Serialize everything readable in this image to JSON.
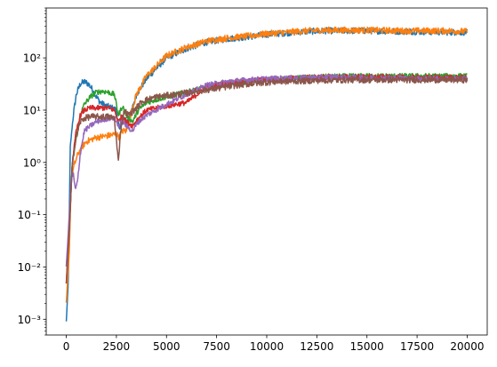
{
  "chart_data": {
    "type": "line",
    "title": "",
    "xlabel": "",
    "ylabel": "",
    "xlim": [
      -1000,
      21000
    ],
    "ylim": [
      0.0005,
      900
    ],
    "yscale": "log",
    "grid": false,
    "legend": "none",
    "x_ticks": [
      0,
      2500,
      5000,
      7500,
      10000,
      12500,
      15000,
      17500,
      20000
    ],
    "x_tick_labels": [
      "0",
      "2500",
      "5000",
      "7500",
      "10000",
      "12500",
      "15000",
      "17500",
      "20000"
    ],
    "y_ticks": [
      0.001,
      0.01,
      0.1,
      1,
      10,
      100
    ],
    "y_tick_labels": [
      "10⁻³",
      "10⁻²",
      "10⁻¹",
      "10⁰",
      "10¹",
      "10²"
    ],
    "series": [
      {
        "color": "#1f77b4",
        "noise": 0.06,
        "points": [
          [
            0,
            0.0009
          ],
          [
            100,
            0.005
          ],
          [
            200,
            2
          ],
          [
            350,
            8
          ],
          [
            500,
            20
          ],
          [
            700,
            32
          ],
          [
            900,
            35
          ],
          [
            1100,
            32
          ],
          [
            1300,
            25
          ],
          [
            1500,
            18
          ],
          [
            1700,
            14
          ],
          [
            2000,
            12
          ],
          [
            2300,
            11
          ],
          [
            2500,
            10
          ],
          [
            2650,
            4
          ],
          [
            2800,
            7
          ],
          [
            3000,
            6
          ],
          [
            3200,
            8
          ],
          [
            3500,
            20
          ],
          [
            4000,
            40
          ],
          [
            5000,
            100
          ],
          [
            6000,
            150
          ],
          [
            7000,
            200
          ],
          [
            8000,
            230
          ],
          [
            9000,
            250
          ],
          [
            10000,
            280
          ],
          [
            11000,
            300
          ],
          [
            12000,
            320
          ],
          [
            13000,
            330
          ],
          [
            15000,
            330
          ],
          [
            17000,
            320
          ],
          [
            19000,
            310
          ],
          [
            20000,
            310
          ]
        ]
      },
      {
        "color": "#ff7f0e",
        "noise": 0.06,
        "points": [
          [
            0,
            0.002
          ],
          [
            150,
            0.02
          ],
          [
            250,
            0.5
          ],
          [
            400,
            0.9
          ],
          [
            600,
            1.5
          ],
          [
            800,
            2
          ],
          [
            1000,
            2.5
          ],
          [
            1500,
            3
          ],
          [
            2000,
            3.2
          ],
          [
            2500,
            3.5
          ],
          [
            2650,
            3
          ],
          [
            2800,
            4
          ],
          [
            3000,
            4
          ],
          [
            3200,
            8
          ],
          [
            3500,
            20
          ],
          [
            4000,
            45
          ],
          [
            5000,
            110
          ],
          [
            6000,
            160
          ],
          [
            7000,
            210
          ],
          [
            8000,
            240
          ],
          [
            9000,
            260
          ],
          [
            10000,
            290
          ],
          [
            11000,
            310
          ],
          [
            12000,
            330
          ],
          [
            13000,
            340
          ],
          [
            15000,
            340
          ],
          [
            17000,
            330
          ],
          [
            19000,
            330
          ],
          [
            20000,
            320
          ]
        ]
      },
      {
        "color": "#2ca02c",
        "noise": 0.05,
        "points": [
          [
            0,
            0.01
          ],
          [
            150,
            0.05
          ],
          [
            300,
            1
          ],
          [
            500,
            3
          ],
          [
            700,
            8
          ],
          [
            900,
            13
          ],
          [
            1200,
            18
          ],
          [
            1500,
            22
          ],
          [
            1800,
            23
          ],
          [
            2100,
            22
          ],
          [
            2400,
            20
          ],
          [
            2600,
            8
          ],
          [
            2800,
            12
          ],
          [
            3000,
            8
          ],
          [
            3300,
            6
          ],
          [
            3600,
            10
          ],
          [
            4000,
            14
          ],
          [
            5000,
            18
          ],
          [
            6000,
            22
          ],
          [
            7000,
            28
          ],
          [
            8000,
            32
          ],
          [
            9000,
            35
          ],
          [
            10000,
            38
          ],
          [
            11000,
            40
          ],
          [
            12000,
            42
          ],
          [
            13000,
            44
          ],
          [
            15000,
            45
          ],
          [
            17000,
            45
          ],
          [
            19000,
            45
          ],
          [
            20000,
            45
          ]
        ]
      },
      {
        "color": "#d62728",
        "noise": 0.05,
        "points": [
          [
            0,
            0.005
          ],
          [
            150,
            0.05
          ],
          [
            300,
            1
          ],
          [
            500,
            4
          ],
          [
            700,
            8
          ],
          [
            900,
            10
          ],
          [
            1200,
            11
          ],
          [
            1500,
            11
          ],
          [
            1800,
            11
          ],
          [
            2100,
            11
          ],
          [
            2400,
            10
          ],
          [
            2600,
            6
          ],
          [
            2800,
            8
          ],
          [
            3000,
            6
          ],
          [
            3300,
            5
          ],
          [
            3600,
            7
          ],
          [
            4000,
            10
          ],
          [
            5000,
            12
          ],
          [
            6000,
            14
          ],
          [
            7000,
            28
          ],
          [
            8000,
            33
          ],
          [
            9000,
            36
          ],
          [
            10000,
            39
          ],
          [
            11000,
            40
          ],
          [
            12000,
            42
          ],
          [
            13000,
            43
          ],
          [
            15000,
            43
          ],
          [
            17000,
            42
          ],
          [
            19000,
            42
          ],
          [
            20000,
            42
          ]
        ]
      },
      {
        "color": "#9467bd",
        "noise": 0.05,
        "points": [
          [
            0,
            0.01
          ],
          [
            150,
            0.1
          ],
          [
            250,
            0.5
          ],
          [
            350,
            0.6
          ],
          [
            450,
            0.3
          ],
          [
            550,
            0.4
          ],
          [
            700,
            1.5
          ],
          [
            900,
            4
          ],
          [
            1200,
            5
          ],
          [
            1500,
            6
          ],
          [
            1800,
            6.5
          ],
          [
            2100,
            7
          ],
          [
            2400,
            7
          ],
          [
            2600,
            5
          ],
          [
            2800,
            6
          ],
          [
            3000,
            5
          ],
          [
            3300,
            4
          ],
          [
            3600,
            6
          ],
          [
            4000,
            8
          ],
          [
            5000,
            13
          ],
          [
            6000,
            20
          ],
          [
            7000,
            30
          ],
          [
            8000,
            35
          ],
          [
            9000,
            38
          ],
          [
            10000,
            40
          ],
          [
            11000,
            41
          ],
          [
            12000,
            42
          ],
          [
            13000,
            43
          ],
          [
            15000,
            42
          ],
          [
            17000,
            41
          ],
          [
            19000,
            40
          ],
          [
            20000,
            40
          ]
        ]
      },
      {
        "color": "#8c564b",
        "noise": 0.06,
        "points": [
          [
            0,
            0.005
          ],
          [
            150,
            0.05
          ],
          [
            300,
            1
          ],
          [
            500,
            3
          ],
          [
            700,
            6
          ],
          [
            900,
            7
          ],
          [
            1200,
            7.5
          ],
          [
            1500,
            7.5
          ],
          [
            1800,
            7.5
          ],
          [
            2100,
            7.5
          ],
          [
            2400,
            7
          ],
          [
            2600,
            1
          ],
          [
            2700,
            4
          ],
          [
            2900,
            10
          ],
          [
            3100,
            8
          ],
          [
            3400,
            10
          ],
          [
            3800,
            15
          ],
          [
            4500,
            18
          ],
          [
            5500,
            20
          ],
          [
            6500,
            23
          ],
          [
            7500,
            26
          ],
          [
            8500,
            30
          ],
          [
            9500,
            33
          ],
          [
            10500,
            35
          ],
          [
            11500,
            36
          ],
          [
            12500,
            37
          ],
          [
            14000,
            38
          ],
          [
            16000,
            38
          ],
          [
            18000,
            38
          ],
          [
            20000,
            38
          ]
        ]
      }
    ]
  }
}
